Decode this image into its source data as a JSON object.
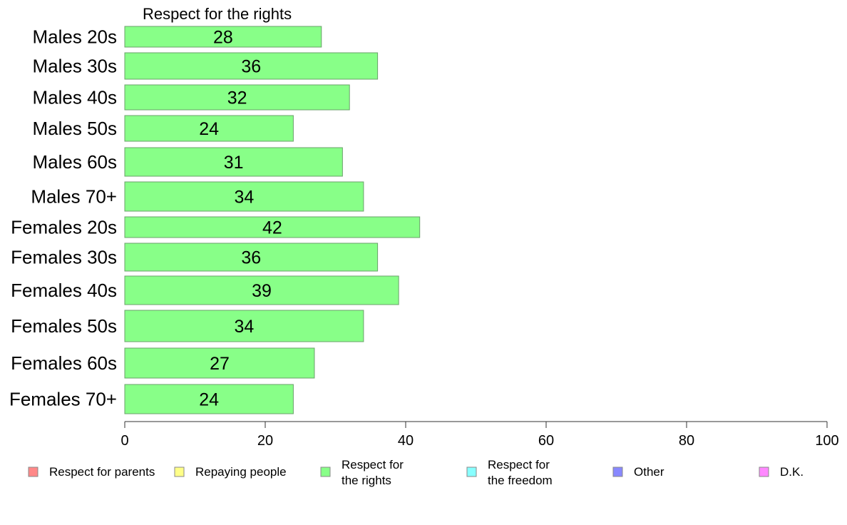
{
  "chart_data": {
    "type": "bar",
    "orientation": "horizontal",
    "title": "Respect for the rights",
    "categories": [
      "Males 20s",
      "Males 30s",
      "Males 40s",
      "Males 50s",
      "Males 60s",
      "Males 70+",
      "Females 20s",
      "Females 30s",
      "Females 40s",
      "Females 50s",
      "Females 60s",
      "Females 70+"
    ],
    "series": [
      {
        "name": "Respect for the rights",
        "color": "#88ff88",
        "values": [
          28,
          36,
          32,
          24,
          31,
          34,
          42,
          36,
          39,
          34,
          27,
          24
        ]
      }
    ],
    "xlim": [
      0,
      100
    ],
    "xticks": [
      "0",
      "20",
      "40",
      "60",
      "80",
      "100"
    ],
    "grid": false,
    "legend_position": "bottom",
    "legend": [
      {
        "lines": [
          "Respect for parents"
        ],
        "color": "#ff8888"
      },
      {
        "lines": [
          "Repaying people"
        ],
        "color": "#ffff88"
      },
      {
        "lines": [
          "Respect for",
          "the rights"
        ],
        "color": "#88ff88"
      },
      {
        "lines": [
          "Respect for",
          "the freedom"
        ],
        "color": "#88ffff"
      },
      {
        "lines": [
          "Other"
        ],
        "color": "#8888ff"
      },
      {
        "lines": [
          "D.K."
        ],
        "color": "#ff88ff"
      }
    ]
  }
}
